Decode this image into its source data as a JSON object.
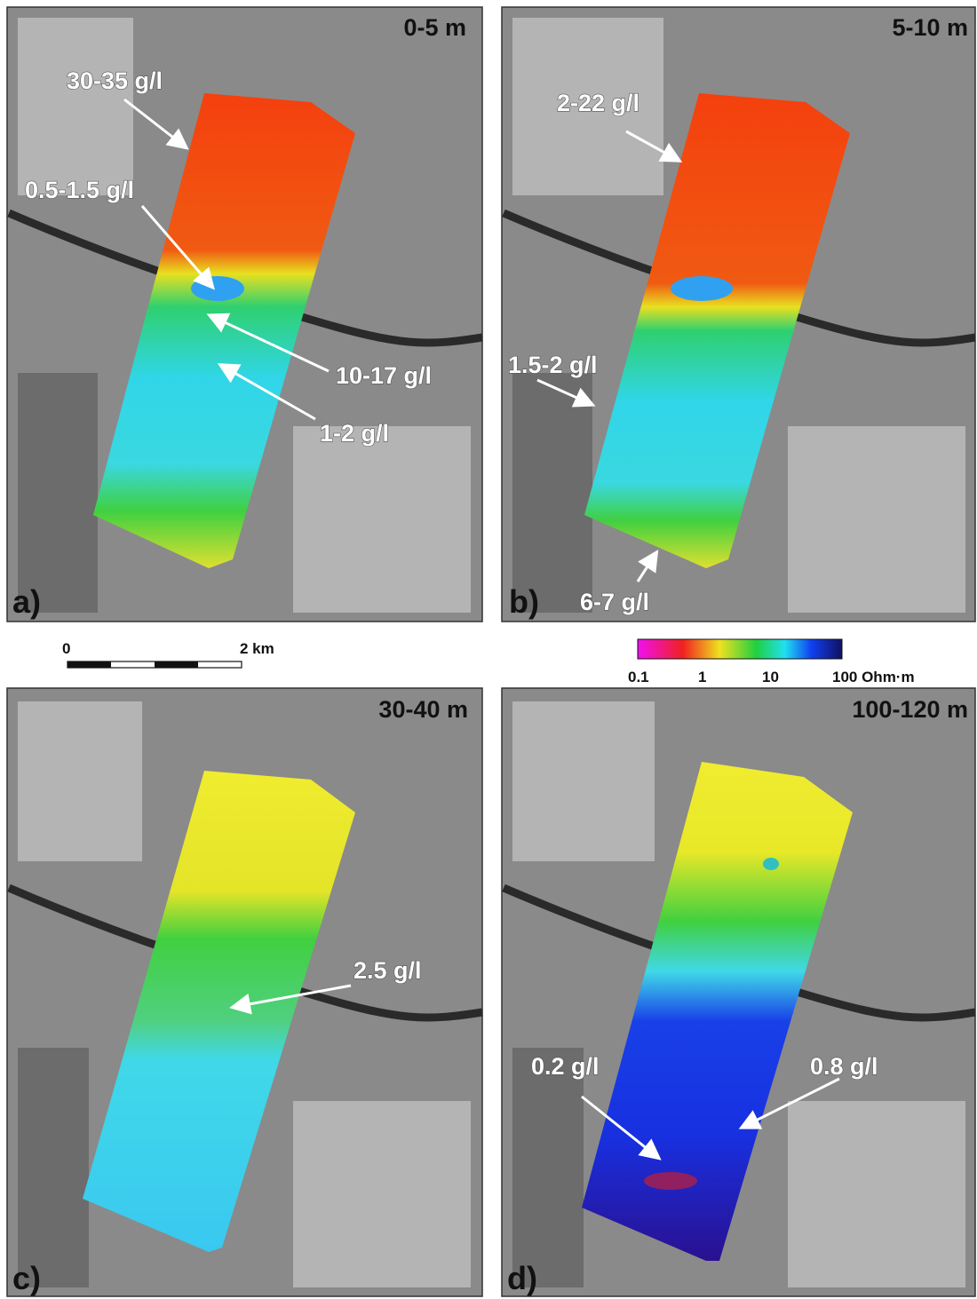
{
  "panels": [
    {
      "letter": "a)",
      "depth": "0-5 m",
      "annotations": [
        "30-35 g/l",
        "0.5-1.5 g/l",
        "10-17 g/l",
        "1-2 g/l"
      ]
    },
    {
      "letter": "b)",
      "depth": "5-10 m",
      "annotations": [
        "2-22 g/l",
        "1.5-2 g/l",
        "6-7 g/l"
      ]
    },
    {
      "letter": "c)",
      "depth": "30-40 m",
      "annotations": [
        "2.5 g/l"
      ]
    },
    {
      "letter": "d)",
      "depth": "100-120 m",
      "annotations": [
        "0.2 g/l",
        "0.8 g/l"
      ]
    }
  ],
  "scale_bar": {
    "labels": [
      "0",
      "2 km"
    ]
  },
  "colorbar": {
    "labels": [
      "0.1",
      "1",
      "10",
      "100 Ohm·m"
    ]
  }
}
